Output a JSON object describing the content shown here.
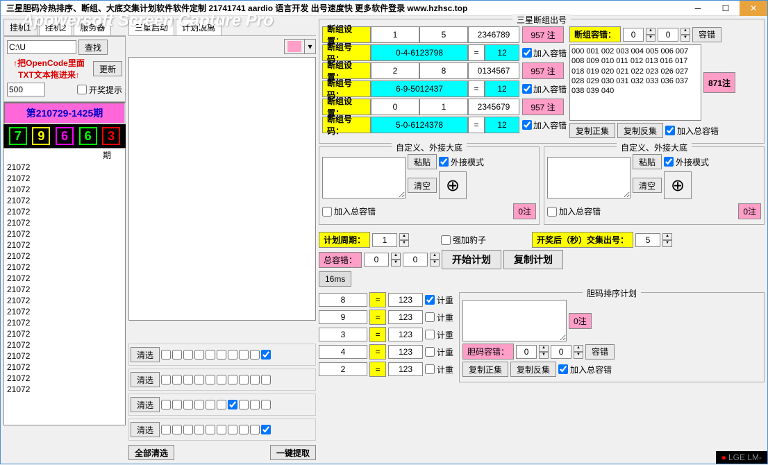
{
  "titlebar": "三星胆码冷热排序、断组、大底交集计划软件软件定制 21741741 aardio 语言开发 出号速度快 更多软件登录 www.hzhsc.top",
  "watermark": "Apowersoft Screen Capture Pro",
  "tabs": [
    "挂机1",
    "挂机2",
    "服务器",
    "三星启动",
    "计划脱离"
  ],
  "path_input": "C:\\U",
  "search_btn": "查找",
  "refresh_btn": "更新",
  "drag_hint1": "↑把OpenCode里面",
  "drag_hint2": "TXT文本拖进来↑",
  "value_500": "500",
  "lottery_hint": "开奖提示",
  "period": "第210729-1425期",
  "digits": [
    "7",
    "9",
    "6",
    "6",
    "3"
  ],
  "digit_colors": [
    "lime",
    "yellow",
    "magenta",
    "lime",
    "red"
  ],
  "list_items": [
    "21072",
    "21072",
    "21072",
    "21072",
    "21072",
    "21072",
    "21072",
    "21072",
    "21072",
    "21072",
    "21072",
    "21072",
    "21072",
    "21072",
    "21072",
    "21072",
    "21072",
    "21072",
    "21072",
    "21072",
    "21072"
  ],
  "list_header": "期",
  "clear_sel": "清选",
  "all_clear": "全部清选",
  "one_key_extract": "一键提取",
  "section_title": "三星断组出号",
  "group_rows": [
    {
      "label": "断组设置：",
      "v1": "1",
      "v2": "5",
      "v3": "2346789",
      "btn": "957 注",
      "flag": "加入容错"
    },
    {
      "label": "断组号码：",
      "code": "0-4-6123798",
      "eq": "=",
      "cv": "12",
      "flag": "加入容错"
    },
    {
      "label": "断组设置：",
      "v1": "2",
      "v2": "8",
      "v3": "0134567",
      "btn": "957 注",
      "flag": "加入容错"
    },
    {
      "label": "断组号码：",
      "code": "6-9-5012437",
      "eq": "=",
      "cv": "12",
      "flag": "加入容错"
    },
    {
      "label": "断组设置：",
      "v1": "0",
      "v2": "1",
      "v3": "2345679",
      "btn": "957 注",
      "flag": "加入容错"
    },
    {
      "label": "断组号码：",
      "code": "5-0-6124378",
      "eq": "=",
      "cv": "12",
      "flag": "加入容错"
    }
  ],
  "right_label": "断组容错：",
  "right_v1": "0",
  "right_v2": "0",
  "right_btn": "容错",
  "count_871": "871注",
  "num_block": "000 001 002 003 004 005 006 007 008 009 010 011 012 013 016 017 018 019 020 021 022 023 026 027 028 029 030 031 032 033 036 037 038 039 040",
  "copy_pos": "复制正集",
  "copy_neg": "复制反集",
  "add_total": "加入总容错",
  "custom_title": "自定义、外接大底",
  "paste": "粘贴",
  "external_mode": "外接模式",
  "clear": "清空",
  "zero_note": "0注",
  "plan_cycle": "计划周期：",
  "cycle_val": "1",
  "force_leopard": "强加豹子",
  "after_draw": "开奖后（秒）交集出号：",
  "after_draw_val": "5",
  "total_err": "总容错：",
  "total_err_v1": "0",
  "total_err_v2": "0",
  "start_plan": "开始计划",
  "copy_plan": "复制计划",
  "time_16ms": "16ms",
  "bottom_rows": [
    {
      "n": "8",
      "v": "123"
    },
    {
      "n": "9",
      "v": "123"
    },
    {
      "n": "3",
      "v": "123"
    },
    {
      "n": "4",
      "v": "123"
    },
    {
      "n": "2",
      "v": "123"
    }
  ],
  "weight": "计重",
  "dan_title": "胆码排序计划",
  "dan_err": "胆码容错：",
  "dan_v1": "0",
  "dan_v2": "0",
  "footer": "LGE LM-"
}
